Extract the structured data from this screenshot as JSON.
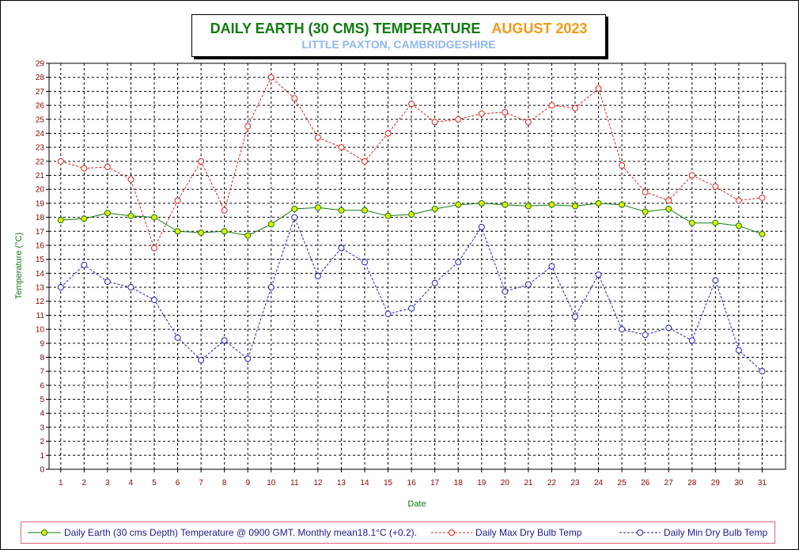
{
  "title": {
    "main": "DAILY EARTH (30 CMS) TEMPERATURE",
    "month": "AUGUST 2023",
    "subtitle": "LITTLE PAXTON, CAMBRIDGESHIRE"
  },
  "colors": {
    "earth_line": "#117a11",
    "earth_marker": "#e6f000",
    "max_line": "#e02020",
    "min_line": "#2020c0",
    "tick_label": "#8b0000",
    "axis_title": "#117a11",
    "legend_border": "#e0657a"
  },
  "legend": {
    "earth": "Daily Earth (30 cms Depth) Temperature @ 0900 GMT. Monthly mean18.1°C (+0.2).",
    "max": "Daily Max Dry Bulb Temp",
    "min": "Daily Min Dry Bulb Temp"
  },
  "chart_data": {
    "type": "line",
    "xlabel": "Date",
    "ylabel": "Temperature (°C)",
    "ylim": [
      0,
      29
    ],
    "grid": true,
    "x": [
      1,
      2,
      3,
      4,
      5,
      6,
      7,
      8,
      9,
      10,
      11,
      12,
      13,
      14,
      15,
      16,
      17,
      18,
      19,
      20,
      21,
      22,
      23,
      24,
      25,
      26,
      27,
      28,
      29,
      30,
      31
    ],
    "series": [
      {
        "name": "Daily Earth (30 cms Depth) Temperature @ 0900 GMT. Monthly mean18.1°C (+0.2).",
        "key": "earth",
        "values": [
          17.8,
          17.9,
          18.3,
          18.1,
          18.0,
          17.0,
          16.9,
          17.0,
          16.7,
          17.5,
          18.6,
          18.7,
          18.5,
          18.5,
          18.1,
          18.2,
          18.6,
          18.9,
          19.0,
          18.9,
          18.8,
          18.9,
          18.8,
          19.0,
          18.9,
          18.4,
          18.6,
          17.6,
          17.6,
          17.4,
          16.8
        ]
      },
      {
        "name": "Daily Max Dry Bulb Temp",
        "key": "max",
        "values": [
          22.0,
          21.5,
          21.6,
          20.7,
          15.8,
          19.2,
          22.0,
          18.5,
          24.5,
          28.0,
          26.5,
          23.7,
          23.0,
          22.0,
          24.0,
          26.1,
          24.8,
          25.0,
          25.4,
          25.5,
          24.8,
          26.0,
          25.8,
          27.2,
          21.7,
          19.8,
          19.2,
          21.0,
          20.2,
          19.2,
          19.4
        ]
      },
      {
        "name": "Daily Min Dry Bulb Temp",
        "key": "min",
        "values": [
          13.0,
          14.6,
          13.4,
          13.0,
          12.1,
          9.4,
          7.8,
          9.2,
          7.9,
          13.0,
          18.0,
          13.8,
          15.8,
          14.8,
          11.1,
          11.5,
          13.3,
          14.8,
          17.3,
          12.7,
          13.2,
          14.5,
          10.9,
          13.9,
          10.0,
          9.6,
          10.1,
          9.2,
          13.5,
          8.5,
          7.0
        ]
      }
    ]
  }
}
